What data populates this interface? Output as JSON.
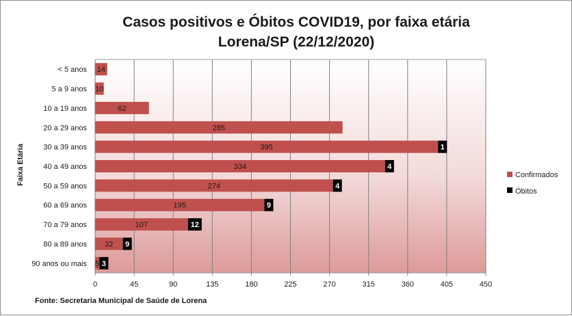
{
  "chart_data": {
    "type": "bar",
    "orientation": "horizontal",
    "stacked": true,
    "title": [
      "Casos positivos e Óbitos COVID19, por faixa etária",
      "Lorena/SP (22/12/2020)"
    ],
    "ylabel": "Faixa Etária",
    "xlabel": "",
    "xlim": [
      0,
      450
    ],
    "xticks": [
      0,
      45,
      90,
      135,
      180,
      225,
      270,
      315,
      360,
      405,
      450
    ],
    "grid": "vertical",
    "legend_position": "right",
    "categories": [
      "< 5 anos",
      "5 a 9 anos",
      "10 a 19 anos",
      "20 a 29 anos",
      "30 a 39 anos",
      "40 a 49 anos",
      "50 a 59 anos",
      "60 a 69 anos",
      "70 a 79 anos",
      "80 a 89 anos",
      "90 anos ou mais"
    ],
    "series": [
      {
        "name": "Confirmados",
        "color": "#c0504d",
        "values": [
          14,
          10,
          62,
          285,
          395,
          334,
          274,
          195,
          107,
          32,
          5
        ]
      },
      {
        "name": "Óbitos",
        "color": "#000000",
        "values": [
          0,
          0,
          0,
          0,
          1,
          4,
          4,
          9,
          12,
          9,
          3
        ]
      }
    ],
    "source": "Fonte: Secretaria Municipal  de Saúde de Lorena"
  }
}
